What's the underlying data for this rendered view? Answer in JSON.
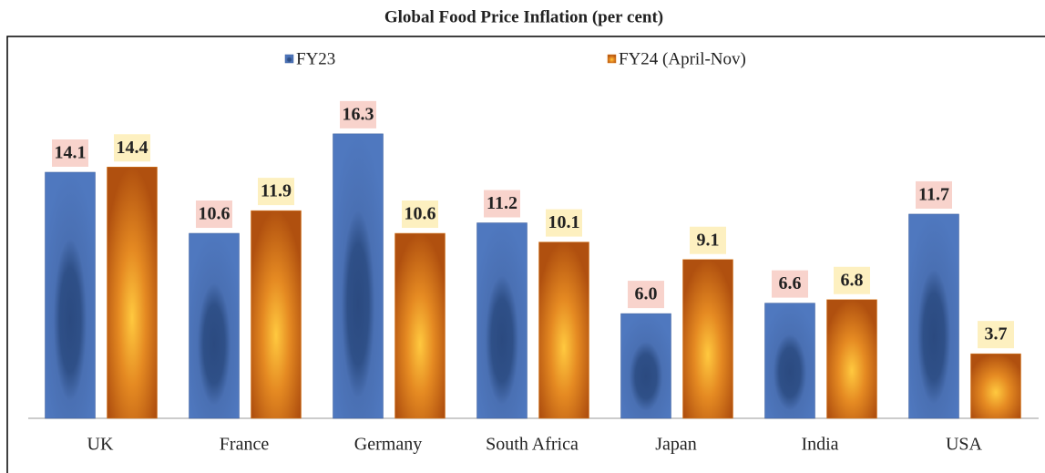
{
  "chart_data": {
    "type": "bar",
    "title": "Global Food Price Inflation (per cent)",
    "categories": [
      "UK",
      "France",
      "Germany",
      "South Africa",
      "Japan",
      "India",
      "USA"
    ],
    "series": [
      {
        "name": "FY23",
        "color": "#3d5f9c",
        "values": [
          14.1,
          10.6,
          16.3,
          11.2,
          6.0,
          6.6,
          11.7
        ],
        "value_labels": [
          "14.1",
          "10.6",
          "16.3",
          "11.2",
          "6.0",
          "6.6",
          "11.7"
        ]
      },
      {
        "name": "FY24 (April-Nov)",
        "color": "#d97a1c",
        "values": [
          14.4,
          11.9,
          10.6,
          10.1,
          9.1,
          6.8,
          3.7
        ],
        "value_labels": [
          "14.4",
          "11.9",
          "10.6",
          "10.1",
          "9.1",
          "6.8",
          "3.7"
        ]
      }
    ],
    "legend": "top"
  }
}
